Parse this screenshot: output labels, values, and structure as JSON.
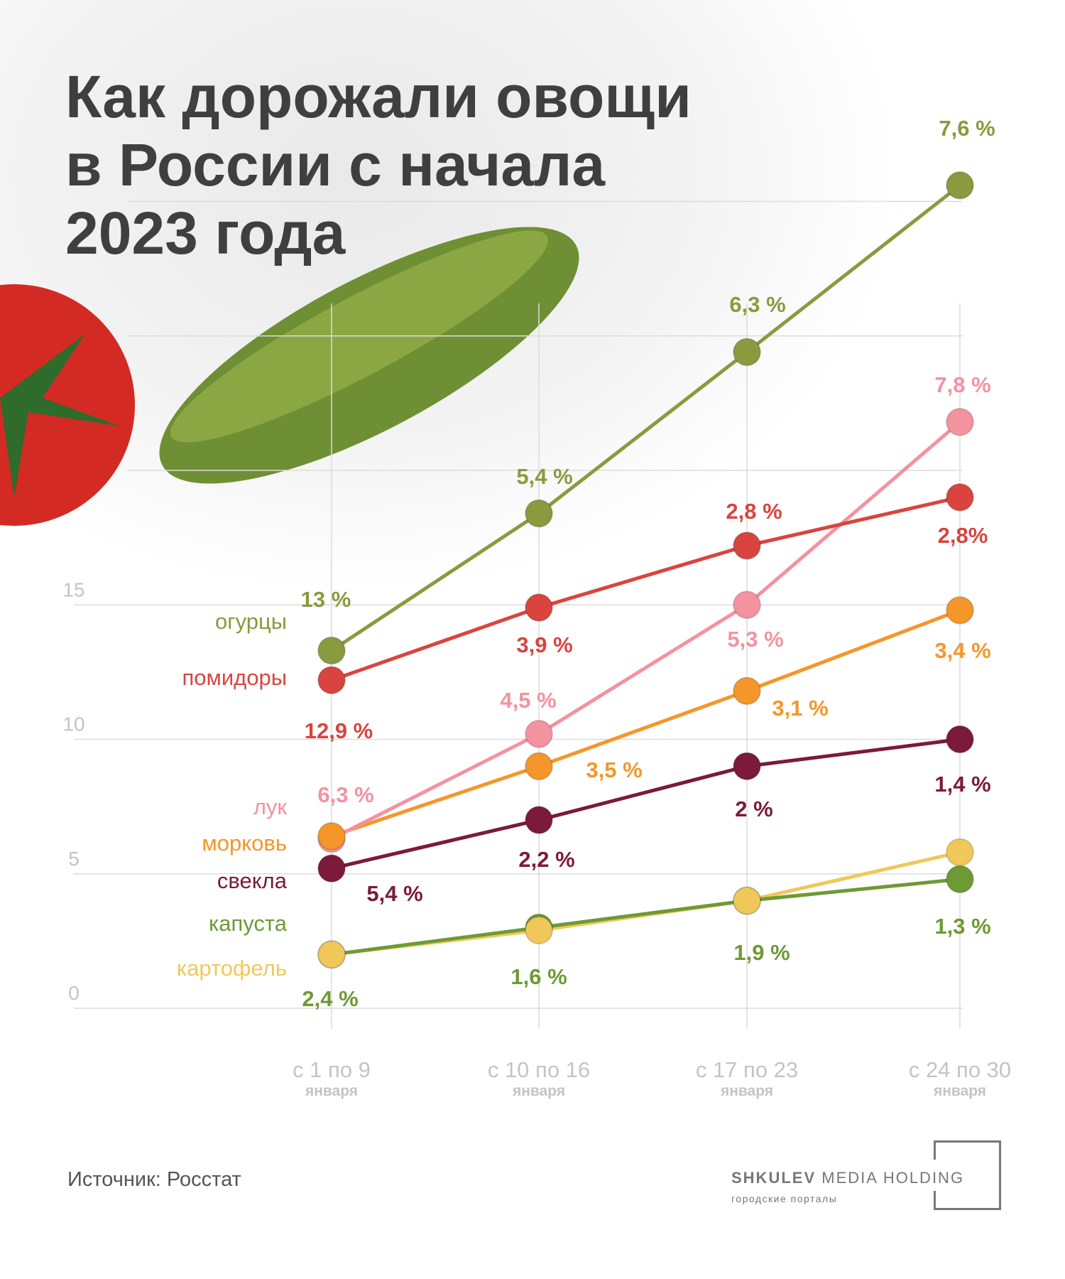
{
  "title_lines": [
    "Как дорожали овощи",
    "в России с начала",
    "2023 года"
  ],
  "source": "Источник: Росстат",
  "logo": {
    "bold": "SHKULEV",
    "light": "MEDIA HOLDING",
    "sub": "городские порталы"
  },
  "chart_data": {
    "type": "line",
    "title": "Как дорожали овощи в России с начала 2023 года",
    "xlabel": "",
    "ylabel": "",
    "categories": [
      {
        "main": "с 1 по 9",
        "sub": "января"
      },
      {
        "main": "с 10 по 16",
        "sub": "января"
      },
      {
        "main": "с 17 по 23",
        "sub": "января"
      },
      {
        "main": "с 24 по 30",
        "sub": "января"
      }
    ],
    "y_ticks": [
      "0",
      "5",
      "10",
      "15"
    ],
    "y_tick_values": [
      0,
      5,
      10,
      15
    ],
    "gridlines_at": [
      0,
      5,
      10,
      15,
      20,
      25,
      30
    ],
    "ylim": [
      0,
      32
    ],
    "grid": true,
    "legend": "left",
    "series": [
      {
        "name": "огурцы",
        "color": "#8a9a3e",
        "values": [
          13.3,
          18.4,
          24.4,
          30.6
        ],
        "labels": [
          "13 %",
          "5,4 %",
          "6,3 %",
          "7,6 %"
        ]
      },
      {
        "name": "помидоры",
        "color": "#d9443f",
        "values": [
          12.2,
          14.9,
          17.2,
          19.0
        ],
        "labels": [
          "12,9 %",
          "3,9 %",
          "2,8 %",
          "2,8%"
        ]
      },
      {
        "name": "лук",
        "color": "#f492a0",
        "values": [
          6.3,
          10.2,
          15.0,
          21.8
        ],
        "labels": [
          "6,3 %",
          "4,5 %",
          "5,3 %",
          "7,8 %"
        ]
      },
      {
        "name": "морковь",
        "color": "#f5962a",
        "values": [
          6.4,
          9.0,
          11.8,
          14.8
        ],
        "labels": [
          null,
          "3,5 %",
          "3,1 %",
          "3,4 %"
        ]
      },
      {
        "name": "свекла",
        "color": "#7b1a3a",
        "values": [
          5.2,
          7.0,
          9.0,
          10.0
        ],
        "labels": [
          "5,4 %",
          "2,2 %",
          "2 %",
          "1,4 %"
        ]
      },
      {
        "name": "капуста",
        "color": "#6e9a35",
        "values": [
          2.0,
          3.0,
          4.0,
          4.8
        ],
        "labels": [
          "2,4 %",
          "1,6 %",
          "1,9 %",
          "1,3 %"
        ]
      },
      {
        "name": "картофель",
        "color": "#f0c85a",
        "values": [
          2.0,
          2.9,
          4.0,
          5.8
        ],
        "labels": [
          null,
          null,
          null,
          null
        ]
      }
    ]
  }
}
